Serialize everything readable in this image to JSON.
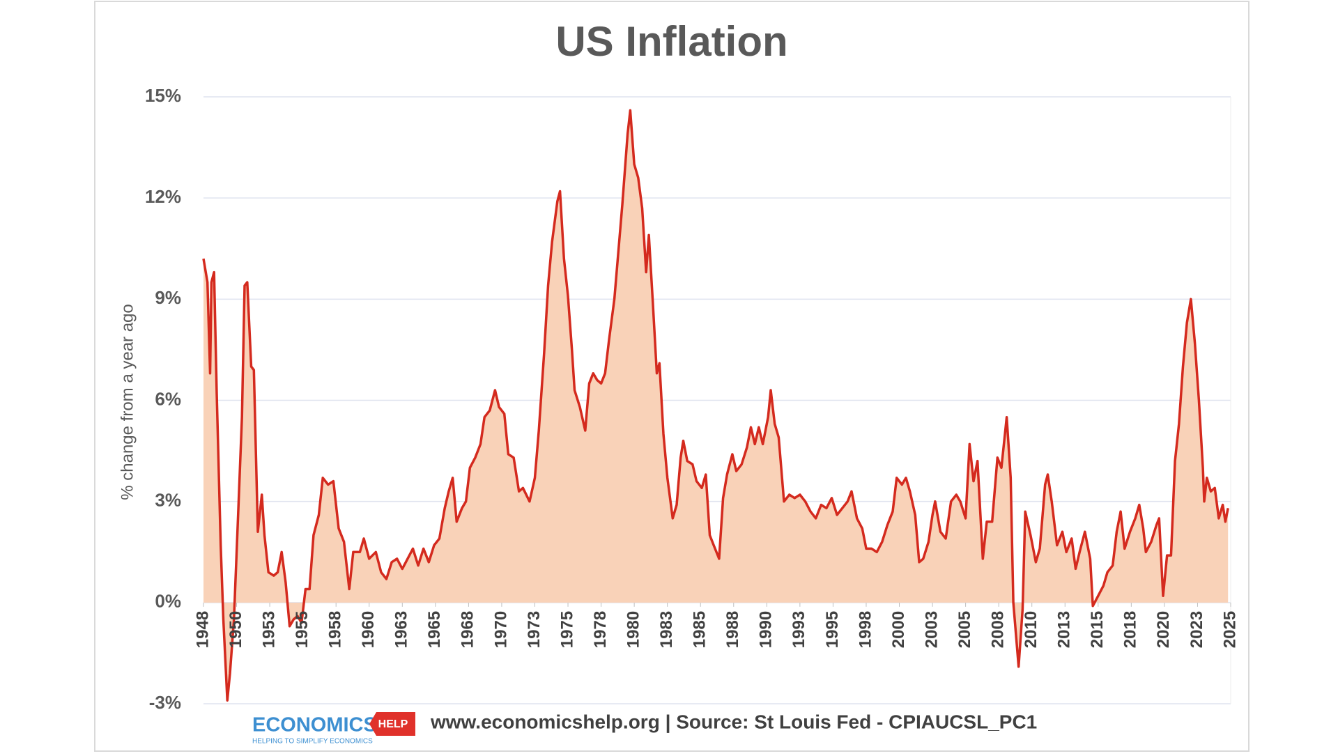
{
  "chart_data": {
    "type": "area",
    "title": "US Inflation",
    "y_label": "% change from a year ago",
    "source": "www.economicshelp.org | Source: St Louis Fed - CPIAUCSL_PC1",
    "logo": {
      "name": "ECONOMICS",
      "badge": "HELP",
      "tagline": "HELPING TO SIMPLIFY ECONOMICS"
    },
    "color": "#d42a1e",
    "fill_color": "#f9d2b8",
    "grid": true,
    "xlim": [
      1948,
      2025.5
    ],
    "xticks": [
      {
        "value": 1948,
        "label": "1948"
      },
      {
        "value": 1950.5,
        "label": "1950"
      },
      {
        "value": 1953,
        "label": "1953"
      },
      {
        "value": 1955.5,
        "label": "1955"
      },
      {
        "value": 1958,
        "label": "1958"
      },
      {
        "value": 1960.5,
        "label": "1960"
      },
      {
        "value": 1963,
        "label": "1963"
      },
      {
        "value": 1965.5,
        "label": "1965"
      },
      {
        "value": 1968,
        "label": "1968"
      },
      {
        "value": 1970.5,
        "label": "1970"
      },
      {
        "value": 1973,
        "label": "1973"
      },
      {
        "value": 1975.5,
        "label": "1975"
      },
      {
        "value": 1978,
        "label": "1978"
      },
      {
        "value": 1980.5,
        "label": "1980"
      },
      {
        "value": 1983,
        "label": "1983"
      },
      {
        "value": 1985.5,
        "label": "1985"
      },
      {
        "value": 1988,
        "label": "1988"
      },
      {
        "value": 1990.5,
        "label": "1990"
      },
      {
        "value": 1993,
        "label": "1993"
      },
      {
        "value": 1995.5,
        "label": "1995"
      },
      {
        "value": 1998,
        "label": "1998"
      },
      {
        "value": 2000.5,
        "label": "2000"
      },
      {
        "value": 2003,
        "label": "2003"
      },
      {
        "value": 2005.5,
        "label": "2005"
      },
      {
        "value": 2008,
        "label": "2008"
      },
      {
        "value": 2010.5,
        "label": "2010"
      },
      {
        "value": 2013,
        "label": "2013"
      },
      {
        "value": 2015.5,
        "label": "2015"
      },
      {
        "value": 2018,
        "label": "2018"
      },
      {
        "value": 2020.5,
        "label": "2020"
      },
      {
        "value": 2023,
        "label": "2023"
      },
      {
        "value": 2025.5,
        "label": "2025"
      }
    ],
    "ylim": [
      -3,
      15
    ],
    "yticks": [
      {
        "value": -3,
        "label": "-3%"
      },
      {
        "value": 0,
        "label": "0%"
      },
      {
        "value": 3,
        "label": "3%"
      },
      {
        "value": 6,
        "label": "6%"
      },
      {
        "value": 9,
        "label": "9%"
      },
      {
        "value": 12,
        "label": "12%"
      },
      {
        "value": 15,
        "label": "15%"
      }
    ],
    "x": [
      1948.0,
      1948.3,
      1948.5,
      1948.6,
      1948.8,
      1949.0,
      1949.3,
      1949.5,
      1949.8,
      1950.0,
      1950.3,
      1950.6,
      1950.9,
      1951.1,
      1951.3,
      1951.6,
      1951.8,
      1952.1,
      1952.4,
      1952.6,
      1952.9,
      1953.3,
      1953.6,
      1953.9,
      1954.2,
      1954.5,
      1954.8,
      1955.1,
      1955.4,
      1955.7,
      1956.0,
      1956.3,
      1956.7,
      1957.0,
      1957.4,
      1957.8,
      1958.2,
      1958.6,
      1959.0,
      1959.3,
      1959.8,
      1960.1,
      1960.5,
      1961.0,
      1961.4,
      1961.8,
      1962.2,
      1962.6,
      1963.0,
      1963.4,
      1963.8,
      1964.2,
      1964.6,
      1965.0,
      1965.4,
      1965.8,
      1966.2,
      1966.5,
      1966.8,
      1967.1,
      1967.5,
      1967.8,
      1968.1,
      1968.5,
      1968.9,
      1969.2,
      1969.6,
      1970.0,
      1970.3,
      1970.7,
      1971.0,
      1971.4,
      1971.8,
      1972.1,
      1972.6,
      1973.0,
      1973.3,
      1973.7,
      1974.0,
      1974.3,
      1974.7,
      1974.9,
      1975.2,
      1975.5,
      1975.8,
      1976.0,
      1976.4,
      1976.8,
      1977.1,
      1977.4,
      1977.7,
      1978.0,
      1978.3,
      1978.6,
      1979.0,
      1979.3,
      1979.6,
      1980.0,
      1980.2,
      1980.5,
      1980.8,
      1981.1,
      1981.4,
      1981.6,
      1981.9,
      1982.2,
      1982.4,
      1982.7,
      1983.0,
      1983.4,
      1983.7,
      1984.0,
      1984.2,
      1984.5,
      1984.9,
      1985.2,
      1985.6,
      1985.9,
      1986.2,
      1986.5,
      1986.9,
      1987.2,
      1987.5,
      1987.9,
      1988.2,
      1988.6,
      1989.0,
      1989.3,
      1989.6,
      1989.9,
      1990.2,
      1990.6,
      1990.8,
      1991.1,
      1991.4,
      1991.8,
      1992.2,
      1992.6,
      1993.0,
      1993.4,
      1993.8,
      1994.2,
      1994.6,
      1995.0,
      1995.4,
      1995.8,
      1996.2,
      1996.6,
      1996.9,
      1997.3,
      1997.7,
      1998.0,
      1998.4,
      1998.8,
      1999.2,
      1999.6,
      2000.0,
      2000.3,
      2000.7,
      2001.0,
      2001.3,
      2001.7,
      2002.0,
      2002.3,
      2002.7,
      2003.0,
      2003.2,
      2003.6,
      2004.0,
      2004.4,
      2004.8,
      2005.1,
      2005.5,
      2005.8,
      2006.1,
      2006.4,
      2006.8,
      2007.1,
      2007.5,
      2007.9,
      2008.2,
      2008.6,
      2008.9,
      2009.1,
      2009.5,
      2009.8,
      2010.0,
      2010.4,
      2010.8,
      2011.1,
      2011.5,
      2011.7,
      2012.0,
      2012.4,
      2012.8,
      2013.1,
      2013.5,
      2013.8,
      2014.1,
      2014.5,
      2014.9,
      2015.1,
      2015.5,
      2015.9,
      2016.2,
      2016.6,
      2016.9,
      2017.2,
      2017.5,
      2017.9,
      2018.3,
      2018.6,
      2018.9,
      2019.1,
      2019.5,
      2019.9,
      2020.1,
      2020.4,
      2020.7,
      2021.0,
      2021.3,
      2021.6,
      2021.9,
      2022.2,
      2022.5,
      2022.8,
      2023.1,
      2023.4,
      2023.5,
      2023.7,
      2024.0,
      2024.3,
      2024.6,
      2024.9,
      2025.1,
      2025.3
    ],
    "values": [
      10.2,
      9.5,
      6.8,
      9.5,
      9.8,
      6.2,
      1.7,
      -0.5,
      -2.9,
      -2.1,
      -0.5,
      2.5,
      5.5,
      9.4,
      9.5,
      7.0,
      6.9,
      2.1,
      3.2,
      2.0,
      0.9,
      0.8,
      0.9,
      1.5,
      0.6,
      -0.7,
      -0.5,
      -0.4,
      -0.6,
      0.4,
      0.4,
      2.0,
      2.6,
      3.7,
      3.5,
      3.6,
      2.2,
      1.8,
      0.4,
      1.5,
      1.5,
      1.9,
      1.3,
      1.5,
      0.9,
      0.7,
      1.2,
      1.3,
      1.0,
      1.3,
      1.6,
      1.1,
      1.6,
      1.2,
      1.7,
      1.9,
      2.8,
      3.3,
      3.7,
      2.4,
      2.8,
      3.0,
      4.0,
      4.3,
      4.7,
      5.5,
      5.7,
      6.3,
      5.8,
      5.6,
      4.4,
      4.3,
      3.3,
      3.4,
      3.0,
      3.7,
      5.1,
      7.4,
      9.4,
      10.7,
      11.9,
      12.2,
      10.2,
      9.1,
      7.5,
      6.3,
      5.8,
      5.1,
      6.5,
      6.8,
      6.6,
      6.5,
      6.8,
      7.8,
      9.0,
      10.4,
      11.8,
      13.9,
      14.6,
      13.0,
      12.6,
      11.7,
      9.8,
      10.9,
      8.9,
      6.8,
      7.1,
      5.0,
      3.7,
      2.5,
      2.9,
      4.3,
      4.8,
      4.2,
      4.1,
      3.6,
      3.4,
      3.8,
      2.0,
      1.7,
      1.3,
      3.1,
      3.8,
      4.4,
      3.9,
      4.1,
      4.6,
      5.2,
      4.7,
      5.2,
      4.7,
      5.5,
      6.3,
      5.3,
      4.9,
      3.0,
      3.2,
      3.1,
      3.2,
      3.0,
      2.7,
      2.5,
      2.9,
      2.8,
      3.1,
      2.6,
      2.8,
      3.0,
      3.3,
      2.5,
      2.2,
      1.6,
      1.6,
      1.5,
      1.8,
      2.3,
      2.7,
      3.7,
      3.5,
      3.7,
      3.3,
      2.6,
      1.2,
      1.3,
      1.8,
      2.6,
      3.0,
      2.1,
      1.9,
      3.0,
      3.2,
      3.0,
      2.5,
      4.7,
      3.6,
      4.2,
      1.3,
      2.4,
      2.4,
      4.3,
      4.0,
      5.5,
      3.7,
      0.0,
      -1.9,
      -0.2,
      2.7,
      2.0,
      1.2,
      1.6,
      3.5,
      3.8,
      3.0,
      1.7,
      2.1,
      1.5,
      1.9,
      1.0,
      1.5,
      2.1,
      1.3,
      -0.1,
      0.2,
      0.5,
      0.9,
      1.1,
      2.1,
      2.7,
      1.6,
      2.1,
      2.5,
      2.9,
      2.2,
      1.5,
      1.8,
      2.3,
      2.5,
      0.2,
      1.4,
      1.4,
      4.2,
      5.3,
      7.0,
      8.3,
      9.0,
      7.7,
      6.0,
      4.0,
      3.0,
      3.7,
      3.3,
      3.4,
      2.5,
      2.9,
      2.4,
      2.8
    ]
  }
}
